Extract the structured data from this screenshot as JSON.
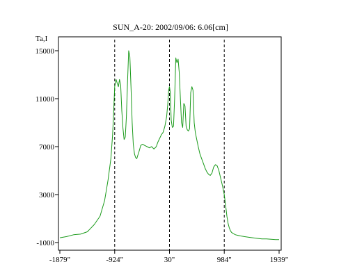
{
  "chart_data": {
    "type": "line",
    "title": "SUN_A-20: 2002/09/06: 6.06[cm]",
    "ylabel": "Ta,I",
    "xlabel": "",
    "xlim": [
      -1879,
      1939
    ],
    "ylim": [
      -1000,
      16000
    ],
    "grid": false,
    "xticks": [
      {
        "value": -1879,
        "label": "-1879\""
      },
      {
        "value": -924,
        "label": "-924\""
      },
      {
        "value": 30,
        "label": "30\""
      },
      {
        "value": 984,
        "label": "984\""
      },
      {
        "value": 1939,
        "label": "1939\""
      }
    ],
    "yticks": [
      {
        "value": 15000,
        "label": "15000"
      },
      {
        "value": 11000,
        "label": "11000"
      },
      {
        "value": 7000,
        "label": "7000"
      },
      {
        "value": 3000,
        "label": "3000"
      },
      {
        "value": -1000,
        "label": "-1000"
      }
    ],
    "vlines": [
      -924,
      30,
      984
    ],
    "series": [
      {
        "color": "#1a9a1a",
        "x": [
          -1879,
          -1760,
          -1640,
          -1520,
          -1400,
          -1280,
          -1180,
          -1100,
          -1040,
          -990,
          -960,
          -940,
          -924,
          -900,
          -880,
          -860,
          -840,
          -820,
          -800,
          -780,
          -760,
          -740,
          -720,
          -700,
          -680,
          -660,
          -640,
          -620,
          -600,
          -580,
          -560,
          -540,
          -520,
          -500,
          -470,
          -440,
          -400,
          -360,
          -320,
          -280,
          -240,
          -200,
          -170,
          -140,
          -110,
          -80,
          -50,
          -20,
          0,
          15,
          30,
          45,
          60,
          80,
          100,
          120,
          140,
          160,
          180,
          200,
          220,
          240,
          260,
          280,
          300,
          320,
          340,
          360,
          380,
          400,
          420,
          440,
          460,
          480,
          500,
          530,
          560,
          590,
          620,
          650,
          680,
          710,
          740,
          770,
          800,
          830,
          860,
          890,
          920,
          950,
          984,
          1010,
          1030,
          1050,
          1070,
          1090,
          1110,
          1140,
          1180,
          1220,
          1270,
          1330,
          1400,
          1480,
          1560,
          1640,
          1720,
          1800,
          1880,
          1939
        ],
        "y": [
          -600,
          -500,
          -350,
          -300,
          -100,
          500,
          1200,
          2500,
          4200,
          6000,
          8000,
          10200,
          12000,
          12600,
          12300,
          12000,
          12600,
          12100,
          10000,
          8500,
          7600,
          7800,
          9500,
          12500,
          15000,
          14500,
          12000,
          9000,
          7200,
          6400,
          6100,
          6000,
          6300,
          6600,
          7100,
          7200,
          7100,
          7000,
          6900,
          7000,
          6800,
          7000,
          7400,
          7700,
          8000,
          8200,
          8700,
          9500,
          10500,
          11700,
          12000,
          11500,
          9200,
          8600,
          8700,
          11000,
          14400,
          14000,
          14300,
          13200,
          11000,
          9000,
          8600,
          10600,
          10400,
          8700,
          8400,
          8300,
          8500,
          11500,
          12000,
          11700,
          9000,
          8200,
          7700,
          7000,
          6400,
          6000,
          5600,
          5200,
          4900,
          4700,
          4600,
          4800,
          5300,
          5500,
          5400,
          5000,
          4400,
          3800,
          3000,
          2000,
          1200,
          600,
          250,
          0,
          -150,
          -250,
          -350,
          -400,
          -450,
          -500,
          -550,
          -600,
          -650,
          -700,
          -700,
          -730,
          -750,
          -750
        ]
      }
    ]
  }
}
